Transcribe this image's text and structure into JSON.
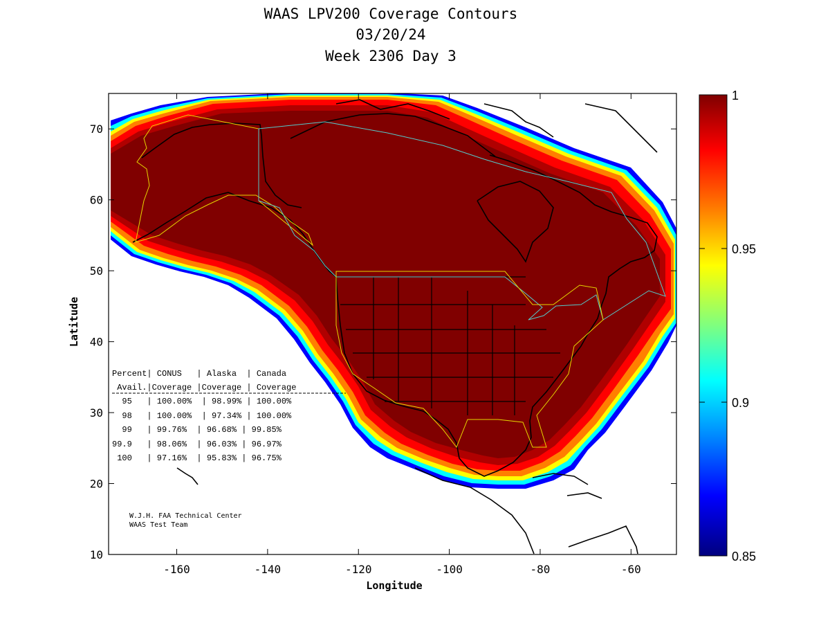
{
  "title_lines": [
    "WAAS LPV200 Coverage Contours",
    "03/20/24",
    "Week 2306 Day 3"
  ],
  "map": {
    "xlabel": "Longitude",
    "ylabel": "Latitude",
    "xlim": [
      -175,
      -50
    ],
    "ylim": [
      10,
      75
    ],
    "xticks": [
      -160,
      -140,
      -120,
      -100,
      -80,
      -60
    ],
    "yticks": [
      10,
      20,
      30,
      40,
      50,
      60,
      70
    ]
  },
  "colorbar": {
    "range": [
      0.85,
      1
    ],
    "ticks": [
      "1",
      "0.95",
      "0.9",
      "0.85"
    ]
  },
  "table": {
    "header_lines": [
      "Percent| CONUS   | Alaska  | Canada",
      " Avail.|Coverage |Coverage | Coverage"
    ],
    "columns": [
      "Percent Avail.",
      "CONUS Coverage",
      "Alaska Coverage",
      "Canada Coverage"
    ],
    "rows": [
      [
        "95",
        "100.00%",
        "98.99%",
        "100.00%"
      ],
      [
        "98",
        "100.00%",
        "97.34%",
        "100.00%"
      ],
      [
        "99",
        "99.76%",
        "96.68%",
        "99.85%"
      ],
      [
        "99.9",
        "98.06%",
        "96.03%",
        "96.97%"
      ],
      [
        "100",
        "97.16%",
        "95.83%",
        "96.75%"
      ]
    ],
    "row_lines": [
      "  95   | 100.00%  | 98.99% | 100.00%",
      "  98   | 100.00%  | 97.34% | 100.00%",
      "  99   | 99.76%  | 96.68% | 99.85%",
      "99.9   | 98.06%  | 96.03% | 96.97%",
      " 100   | 97.16%  | 95.83% | 96.75%"
    ]
  },
  "credit_lines": [
    "W.J.H. FAA Technical Center",
    "WAAS Test Team"
  ]
}
